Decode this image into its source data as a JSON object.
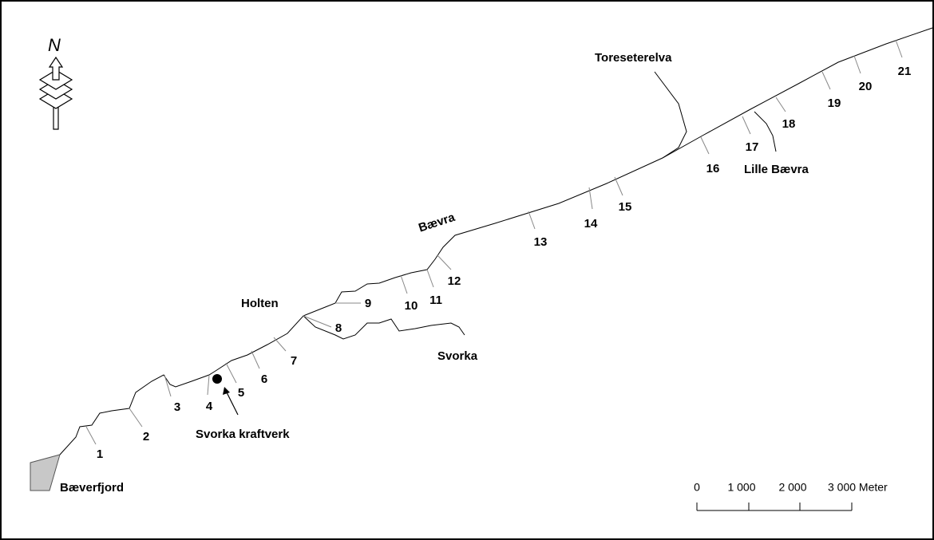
{
  "north": "N",
  "places": [
    "Bæverfjord",
    "Svorka kraftverk",
    "Holten",
    "Svorka",
    "Bævra",
    "Toreseterelva",
    "Lille Bævra"
  ],
  "stations": [
    "1",
    "2",
    "3",
    "4",
    "5",
    "6",
    "7",
    "8",
    "9",
    "10",
    "11",
    "12",
    "13",
    "14",
    "15",
    "16",
    "17",
    "18",
    "19",
    "20",
    "21"
  ],
  "scale": {
    "labels": [
      "0",
      "1 000",
      "2 000",
      "3 000 Meter"
    ]
  }
}
